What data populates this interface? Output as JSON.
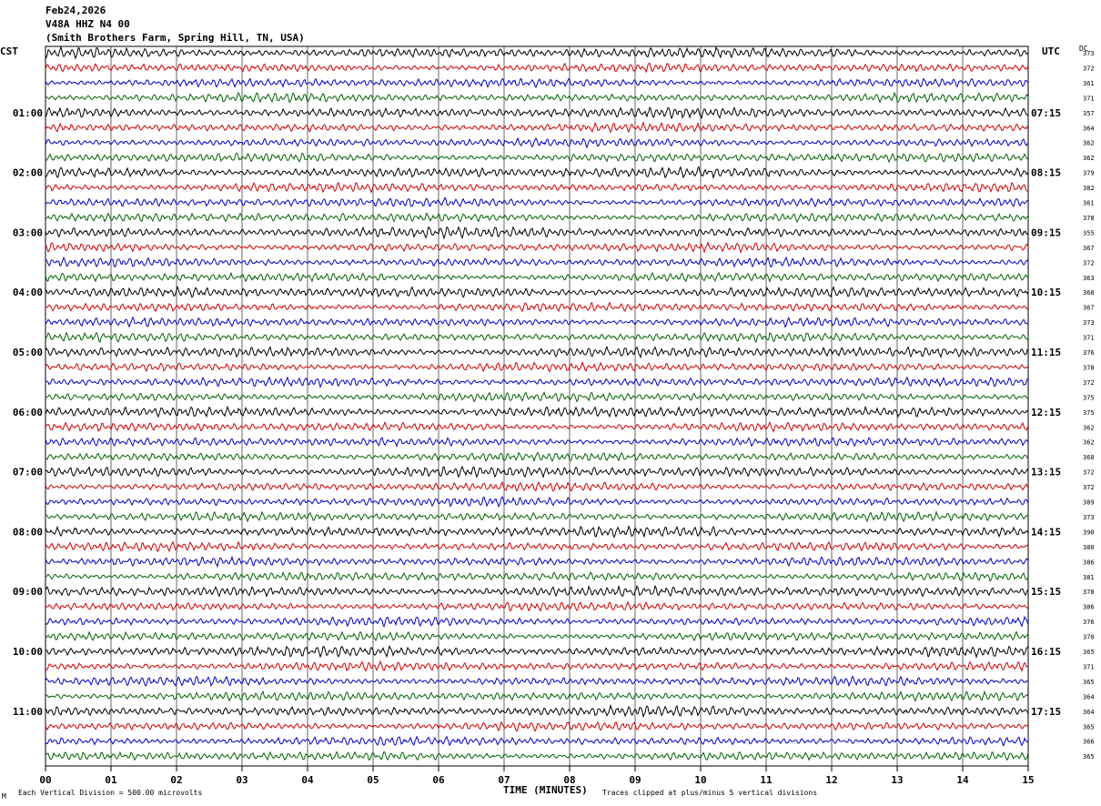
{
  "header": {
    "date": "Feb24,2026",
    "station": "V48A HHZ N4 00",
    "location": "(Smith Brothers Farm, Spring Hill, TN, USA)"
  },
  "labels": {
    "left_tz": "CST",
    "right_tz": "UTC",
    "dc_header": "DC",
    "xlabel": "TIME (MINUTES)",
    "footer_left": "Each Vertical Division =  500.00 microvolts",
    "footer_right": "Traces clipped at plus/minus 5 vertical divisions",
    "corner_mark": "M"
  },
  "colors": {
    "trace_cycle": [
      "#000000",
      "#d10000",
      "#0000cc",
      "#006400"
    ],
    "grid": "#000000"
  },
  "chart_data": {
    "type": "line",
    "description_kind": "helicorder",
    "x_ticks": [
      "00",
      "01",
      "02",
      "03",
      "04",
      "05",
      "06",
      "07",
      "08",
      "09",
      "10",
      "11",
      "12",
      "13",
      "14",
      "15"
    ],
    "xlim": [
      0,
      15
    ],
    "left_hour_labels": [
      "01:00",
      "02:00",
      "03:00",
      "04:00",
      "05:00",
      "06:00",
      "07:00",
      "08:00",
      "09:00",
      "10:00",
      "11:00"
    ],
    "right_hour_labels": [
      "07:15",
      "08:15",
      "09:15",
      "10:15",
      "11:15",
      "12:15",
      "13:15",
      "14:15",
      "15:15",
      "16:15",
      "17:15"
    ],
    "dc_values": [
      "373",
      "372",
      "361",
      "371",
      "357",
      "364",
      "362",
      "362",
      "379",
      "382",
      "361",
      "378",
      "355",
      "367",
      "372",
      "363",
      "368",
      "367",
      "373",
      "371",
      "376",
      "378",
      "372",
      "375",
      "375",
      "362",
      "362",
      "368",
      "372",
      "372",
      "389",
      "373",
      "390",
      "380",
      "386",
      "381",
      "378",
      "386",
      "376",
      "370",
      "365",
      "371",
      "365",
      "364",
      "364",
      "365",
      "366",
      "365"
    ],
    "trace_count": 48
  }
}
